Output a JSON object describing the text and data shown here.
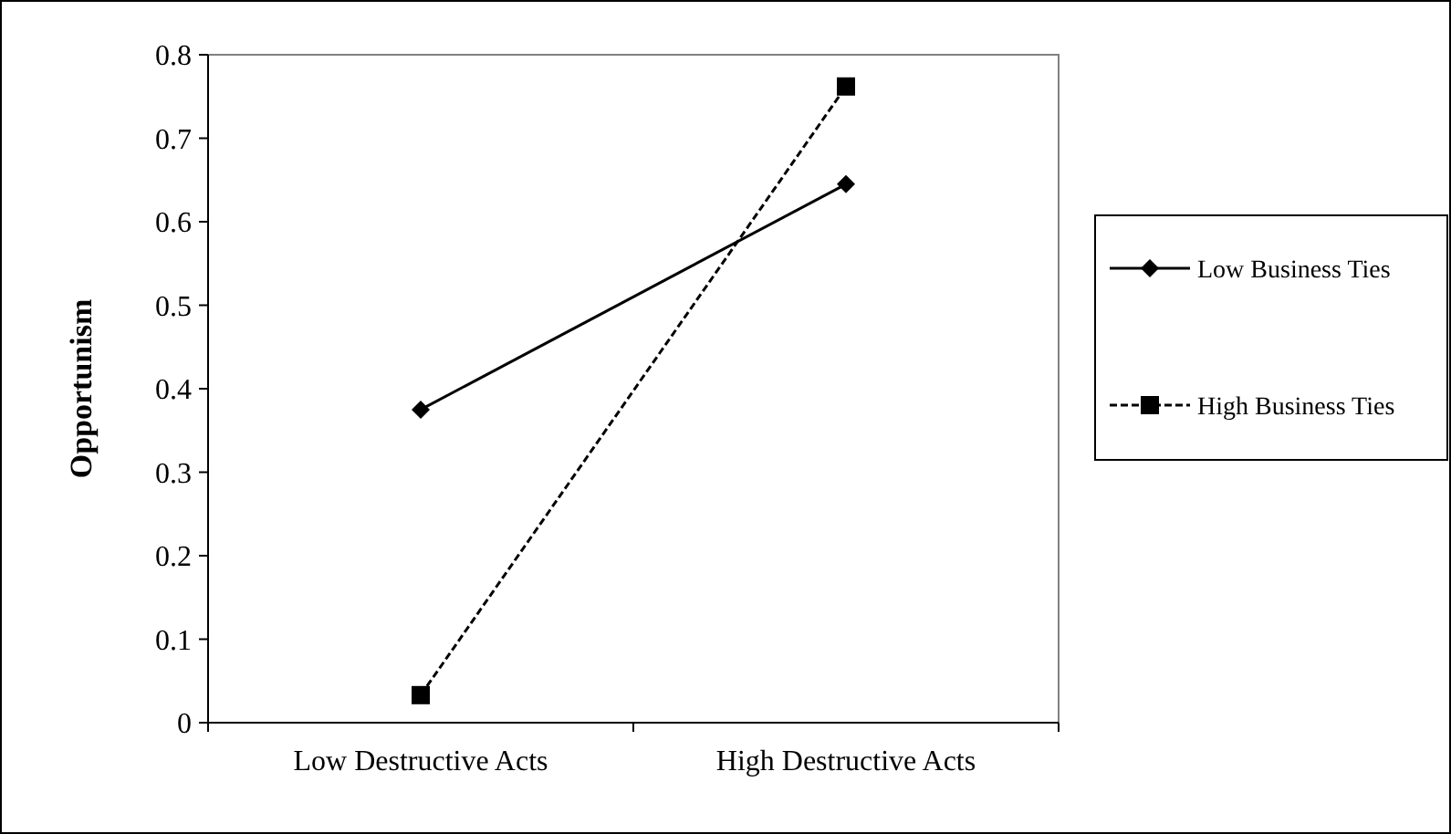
{
  "chart_data": {
    "type": "line",
    "ylabel": "Opportunism",
    "categories": [
      "Low Destructive Acts",
      "High Destructive Acts"
    ],
    "series": [
      {
        "name": "Low Business Ties",
        "color": "#000000",
        "values": [
          0.375,
          0.645
        ],
        "marker": "diamond",
        "line_style": "solid"
      },
      {
        "name": "High Business Ties",
        "color": "#000000",
        "values": [
          0.033,
          0.762
        ],
        "marker": "square",
        "line_style": "dashed"
      }
    ],
    "ylim": [
      0,
      0.8
    ],
    "yticks": [
      0,
      0.1,
      0.2,
      0.3,
      0.4,
      0.5,
      0.6,
      0.7,
      0.8
    ],
    "grid": false,
    "legend": "right"
  }
}
